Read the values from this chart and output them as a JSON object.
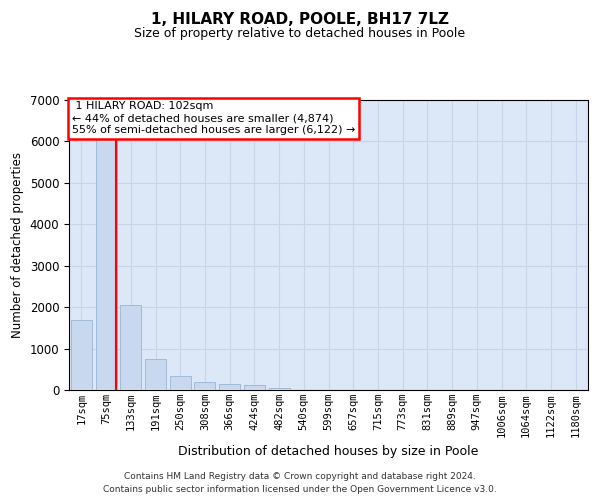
{
  "title_line1": "1, HILARY ROAD, POOLE, BH17 7LZ",
  "title_line2": "Size of property relative to detached houses in Poole",
  "xlabel": "Distribution of detached houses by size in Poole",
  "ylabel": "Number of detached properties",
  "footnote1": "Contains HM Land Registry data © Crown copyright and database right 2024.",
  "footnote2": "Contains public sector information licensed under the Open Government Licence v3.0.",
  "bar_labels": [
    "17sqm",
    "75sqm",
    "133sqm",
    "191sqm",
    "250sqm",
    "308sqm",
    "366sqm",
    "424sqm",
    "482sqm",
    "540sqm",
    "599sqm",
    "657sqm",
    "715sqm",
    "773sqm",
    "831sqm",
    "889sqm",
    "947sqm",
    "1006sqm",
    "1064sqm",
    "1122sqm",
    "1180sqm"
  ],
  "bar_values": [
    1700,
    6050,
    2050,
    750,
    350,
    200,
    140,
    110,
    60,
    0,
    0,
    0,
    0,
    0,
    0,
    0,
    0,
    0,
    0,
    0,
    0
  ],
  "bar_color": "#c8d8ee",
  "bar_edge_color": "#9ab4d4",
  "property_label": "1 HILARY ROAD: 102sqm",
  "pct_smaller": 44,
  "count_smaller": 4874,
  "pct_larger": 55,
  "count_larger": 6122,
  "red_line_x": 1.42,
  "ylim_max": 7000,
  "grid_color": "#c8d4e8",
  "bg_color": "#dce8f8"
}
